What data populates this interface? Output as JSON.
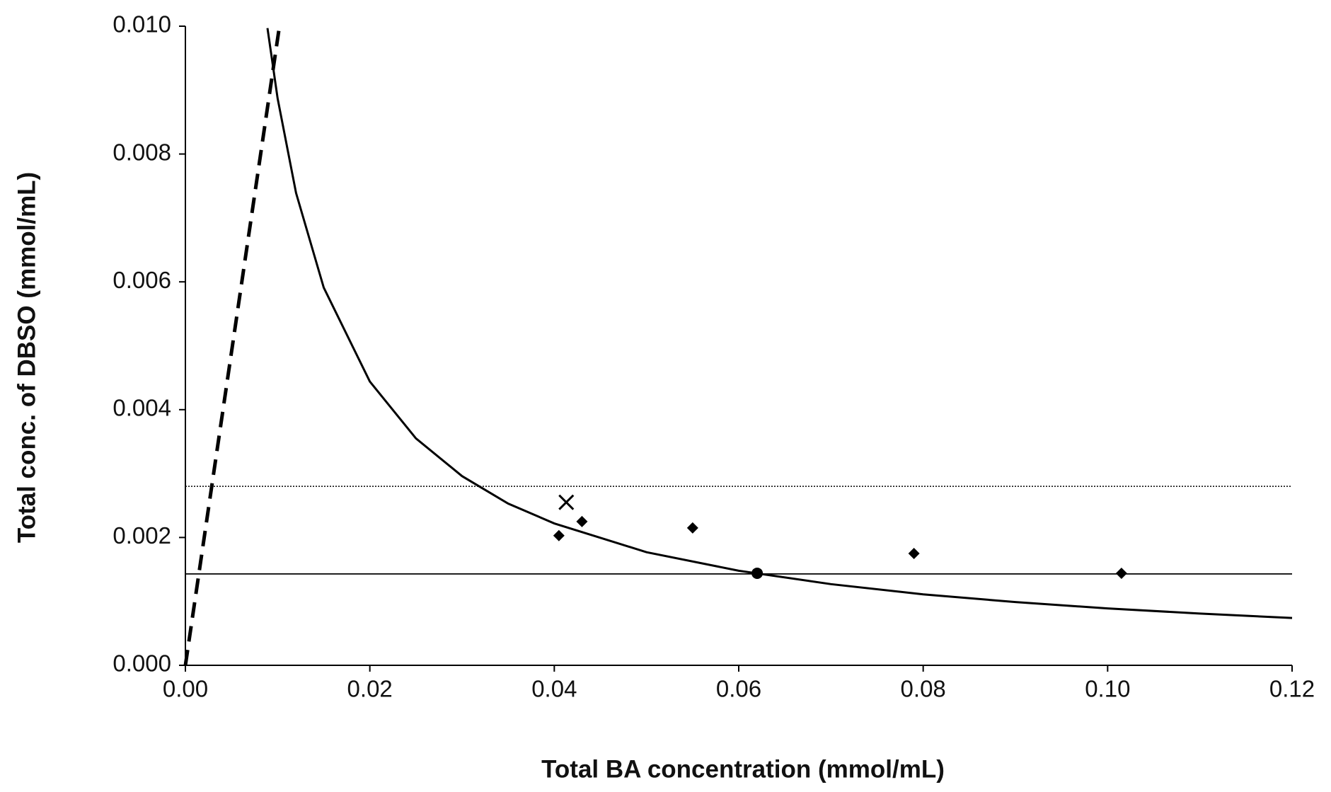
{
  "chart_data": {
    "type": "scatter",
    "x_label": "Total BA concentration (mmol/mL)",
    "y_label": "Total conc. of DBSO (mmol/mL)",
    "xlim": [
      0,
      0.12
    ],
    "ylim": [
      0,
      0.01
    ],
    "xticks": [
      {
        "value": 0,
        "label": "0.00"
      },
      {
        "value": 0.02,
        "label": "0.02"
      },
      {
        "value": 0.04,
        "label": "0.04"
      },
      {
        "value": 0.06,
        "label": "0.06"
      },
      {
        "value": 0.08,
        "label": "0.08"
      },
      {
        "value": 0.1,
        "label": "0.10"
      },
      {
        "value": 0.12,
        "label": "0.12"
      }
    ],
    "yticks": [
      {
        "value": 0,
        "label": "0.000"
      },
      {
        "value": 0.002,
        "label": "0.002"
      },
      {
        "value": 0.004,
        "label": "0.004"
      },
      {
        "value": 0.006,
        "label": "0.006"
      },
      {
        "value": 0.008,
        "label": "0.008"
      },
      {
        "value": 0.01,
        "label": "0.010"
      }
    ],
    "color": "#000000",
    "series": [
      {
        "kind": "line",
        "dash": "solid",
        "x": [
          0.0089,
          0.01,
          0.012,
          0.015,
          0.02,
          0.025,
          0.03,
          0.035,
          0.04,
          0.05,
          0.06,
          0.07,
          0.08,
          0.09,
          0.1,
          0.11,
          0.12
        ],
        "values": [
          0.00997,
          0.00887,
          0.00739,
          0.00591,
          0.00444,
          0.00355,
          0.00296,
          0.00253,
          0.00222,
          0.00177,
          0.00148,
          0.00127,
          0.00111,
          0.00099,
          0.00089,
          0.00081,
          0.00074
        ]
      },
      {
        "kind": "line",
        "dash": "dashed",
        "x": [
          0,
          0.0102
        ],
        "values": [
          0,
          0.01
        ]
      },
      {
        "kind": "line",
        "dash": "dotted",
        "x": [
          0,
          0.12
        ],
        "values": [
          0.0028,
          0.0028
        ]
      },
      {
        "kind": "line",
        "dash": "thin",
        "x": [
          0,
          0.12
        ],
        "values": [
          0.00143,
          0.00143
        ]
      },
      {
        "kind": "marker",
        "marker": "diamond",
        "x": [
          0.0405,
          0.043,
          0.055,
          0.079,
          0.1015
        ],
        "values": [
          0.00203,
          0.00225,
          0.00215,
          0.00175,
          0.00144
        ]
      },
      {
        "kind": "marker",
        "marker": "circle",
        "x": [
          0.062
        ],
        "values": [
          0.00144
        ]
      },
      {
        "kind": "marker",
        "marker": "cross",
        "x": [
          0.0413
        ],
        "values": [
          0.00255
        ]
      }
    ]
  }
}
